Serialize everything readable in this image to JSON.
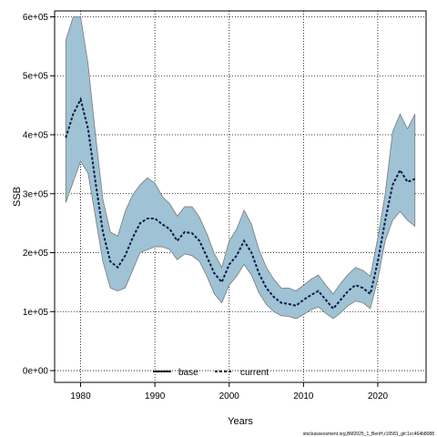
{
  "chart_data": {
    "type": "area",
    "title": "",
    "xlabel": "Years",
    "ylabel": "SSB",
    "xlim": [
      1976.5,
      2026.5
    ],
    "ylim": [
      -20000,
      610000
    ],
    "x_ticks": [
      1980,
      1990,
      2000,
      2010,
      2020
    ],
    "x_tick_labels": [
      "1980",
      "1990",
      "2000",
      "2010",
      "2020"
    ],
    "y_ticks": [
      0,
      100000,
      200000,
      300000,
      400000,
      500000,
      600000
    ],
    "y_tick_labels": [
      "0e+00",
      "1e+05",
      "2e+05",
      "3e+05",
      "4e+05",
      "5e+05",
      "6e+05"
    ],
    "grid": true,
    "legend_position": "bottom-center",
    "legend": [
      {
        "label": "base",
        "style": "solid"
      },
      {
        "label": "current",
        "style": "dashed"
      }
    ],
    "x": [
      1978,
      1979,
      1980,
      1981,
      1982,
      1983,
      1984,
      1985,
      1986,
      1987,
      1988,
      1989,
      1990,
      1991,
      1992,
      1993,
      1994,
      1995,
      1996,
      1997,
      1998,
      1999,
      2000,
      2001,
      2002,
      2003,
      2004,
      2005,
      2006,
      2007,
      2008,
      2009,
      2010,
      2011,
      2012,
      2013,
      2014,
      2015,
      2016,
      2017,
      2018,
      2019,
      2020,
      2021,
      2022,
      2023,
      2024,
      2025
    ],
    "series": [
      {
        "name": "current",
        "values": [
          395000,
          435000,
          460000,
          410000,
          320000,
          235000,
          185000,
          175000,
          195000,
          225000,
          250000,
          258000,
          258000,
          248000,
          240000,
          220000,
          235000,
          233000,
          220000,
          193000,
          165000,
          150000,
          180000,
          195000,
          220000,
          200000,
          165000,
          140000,
          125000,
          115000,
          113000,
          110000,
          120000,
          128000,
          135000,
          120000,
          105000,
          120000,
          135000,
          145000,
          140000,
          130000,
          185000,
          255000,
          315000,
          340000,
          320000,
          325000
        ],
        "lower": [
          285000,
          320000,
          355000,
          335000,
          260000,
          185000,
          140000,
          135000,
          140000,
          170000,
          200000,
          205000,
          210000,
          210000,
          205000,
          188000,
          198000,
          195000,
          185000,
          160000,
          130000,
          115000,
          145000,
          160000,
          180000,
          162000,
          132000,
          112000,
          100000,
          93000,
          92000,
          88000,
          95000,
          103000,
          108000,
          97000,
          88000,
          98000,
          110000,
          118000,
          115000,
          105000,
          155000,
          220000,
          255000,
          270000,
          255000,
          245000
        ],
        "upper": [
          560000,
          600000,
          600000,
          520000,
          400000,
          290000,
          235000,
          228000,
          270000,
          298000,
          315000,
          327000,
          318000,
          295000,
          283000,
          262000,
          278000,
          278000,
          260000,
          232000,
          198000,
          175000,
          220000,
          240000,
          272000,
          248000,
          205000,
          175000,
          155000,
          140000,
          140000,
          135000,
          145000,
          155000,
          162000,
          145000,
          130000,
          148000,
          163000,
          175000,
          170000,
          160000,
          225000,
          300000,
          405000,
          435000,
          410000,
          435000
        ]
      }
    ],
    "colors": {
      "band_fill": "#9fc2d4",
      "band_edge": "#7a7a7a",
      "line": "#0a1a4a"
    }
  },
  "footer": "stockassessment.org,BM2025_1_BenH,r10581_git:1cc464b8088"
}
